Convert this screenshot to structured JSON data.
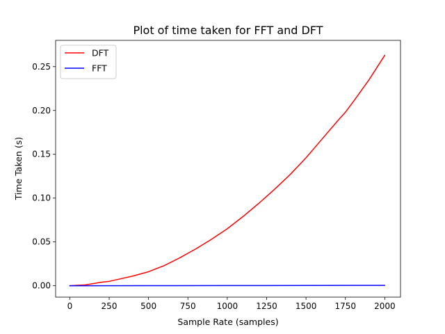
{
  "chart_data": {
    "type": "line",
    "title": "Plot of time taken for FFT and DFT",
    "xlabel": "Sample Rate (samples)",
    "ylabel": "Time Taken (s)",
    "xlim": [
      -90,
      2100
    ],
    "ylim": [
      -0.013,
      0.28
    ],
    "x_ticks": [
      0,
      250,
      500,
      750,
      1000,
      1250,
      1500,
      1750,
      2000
    ],
    "y_ticks": [
      0.0,
      0.05,
      0.1,
      0.15,
      0.2,
      0.25
    ],
    "y_tick_labels": [
      "0.00",
      "0.05",
      "0.10",
      "0.15",
      "0.20",
      "0.25"
    ],
    "grid": false,
    "legend_position": "top-left",
    "series": [
      {
        "name": "DFT",
        "color": "#ff0000",
        "x": [
          0,
          100,
          200,
          250,
          300,
          400,
          500,
          600,
          700,
          750,
          800,
          900,
          1000,
          1100,
          1200,
          1250,
          1300,
          1400,
          1500,
          1600,
          1700,
          1750,
          1800,
          1900,
          1950,
          2000
        ],
        "y": [
          0.0,
          0.001,
          0.004,
          0.005,
          0.007,
          0.011,
          0.016,
          0.023,
          0.032,
          0.037,
          0.042,
          0.053,
          0.065,
          0.079,
          0.094,
          0.102,
          0.11,
          0.127,
          0.146,
          0.167,
          0.188,
          0.198,
          0.21,
          0.235,
          0.249,
          0.263
        ]
      },
      {
        "name": "FFT",
        "color": "#0000ff",
        "x": [
          0,
          500,
          1000,
          1500,
          2000
        ],
        "y": [
          0.0,
          0.0001,
          0.0002,
          0.0003,
          0.0004
        ]
      }
    ]
  }
}
